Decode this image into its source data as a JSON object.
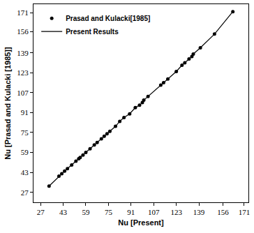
{
  "chart_data": {
    "type": "scatter",
    "x_label": "Nu [Present]",
    "y_label": "Nu [Prasad and Kulacki [1985]]",
    "x": [
      33,
      40,
      42,
      44,
      46,
      49,
      52,
      54,
      55,
      57,
      59,
      62,
      65,
      67,
      70,
      72,
      74,
      76,
      80,
      83,
      86,
      90,
      94,
      97,
      99,
      100,
      103,
      112,
      114,
      117,
      123,
      127,
      129,
      132,
      134,
      135,
      140,
      150,
      163
    ],
    "series": [
      {
        "name": "Prasad and Kulacki[1985]",
        "type": "scatter",
        "marker": "circle",
        "color": "#000000",
        "values": [
          32,
          40,
          42,
          44,
          46,
          49,
          52,
          54,
          55,
          57,
          59,
          62,
          65,
          67,
          70,
          72,
          74,
          76,
          80,
          84,
          87,
          90,
          95,
          97,
          99,
          101,
          104,
          113,
          115,
          118,
          124,
          129,
          131,
          134,
          136,
          138,
          143,
          154,
          172
        ]
      },
      {
        "name": "Present Results",
        "type": "line",
        "line_style": "solid",
        "color": "#000000",
        "values": [
          32,
          40,
          42,
          44,
          46,
          49,
          52,
          54,
          55,
          57,
          59,
          62,
          65,
          67,
          70,
          72,
          74,
          76,
          80,
          84,
          87,
          90,
          95,
          97,
          99,
          101,
          104,
          113,
          115,
          118,
          124,
          129,
          131,
          134,
          136,
          138,
          143,
          154,
          172
        ]
      }
    ],
    "xlim": [
      22,
      174
    ],
    "ylim": [
      19,
      178
    ],
    "xticks": [
      27,
      43,
      59,
      75,
      91,
      107,
      123,
      139,
      156,
      171
    ],
    "yticks": [
      27,
      43,
      59,
      75,
      91,
      107,
      123,
      139,
      156,
      171
    ],
    "grid": false,
    "legend": "upper left"
  }
}
